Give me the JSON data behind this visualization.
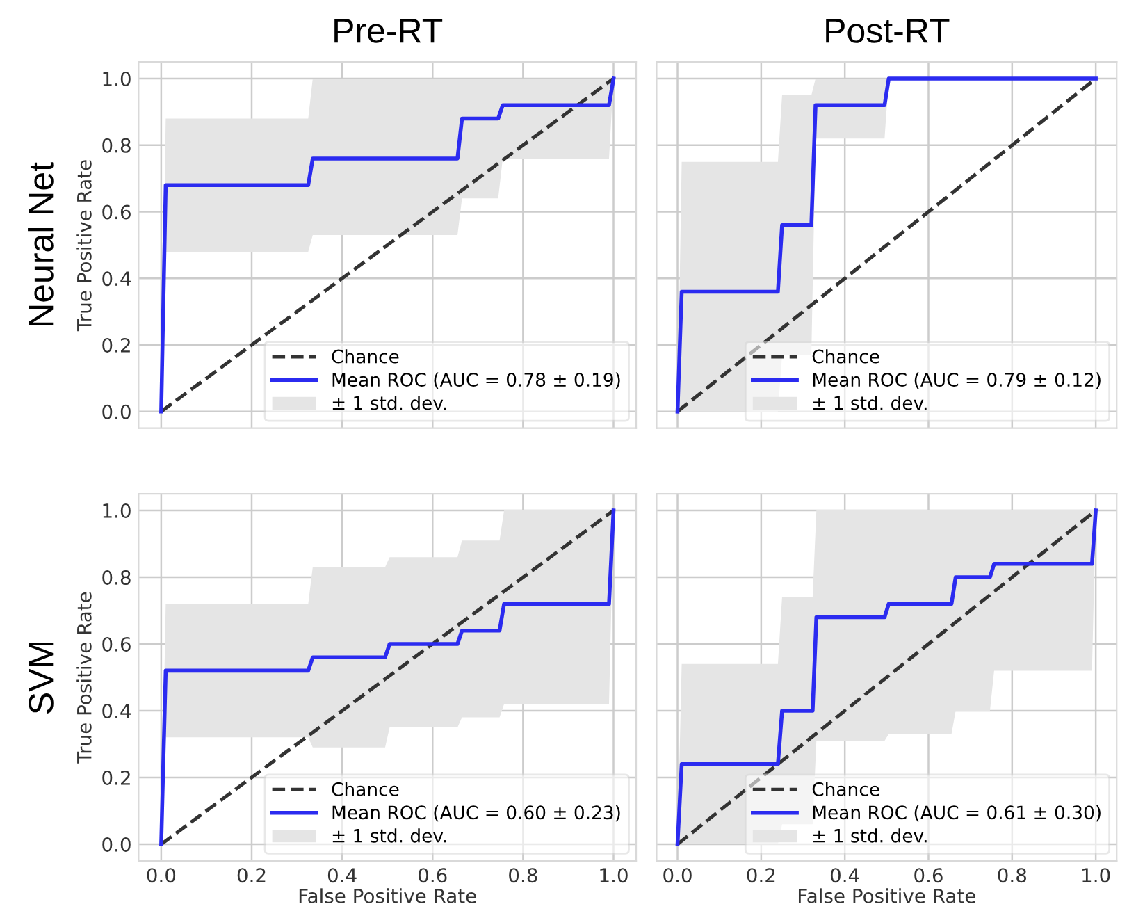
{
  "chart_data": [
    {
      "type": "line",
      "title": "Pre-RT",
      "ylabel": "True Positive Rate",
      "annotations": [
        "Neural Net",
        "± 1 std. dev."
      ],
      "tick_labels": "y",
      "xlim": [
        -0.05,
        1.05
      ],
      "ylim": [
        -0.05,
        1.05
      ],
      "xticks": [
        {
          "value": 0,
          "label": null
        },
        {
          "value": 0.2,
          "label": null
        },
        {
          "value": 0.4,
          "label": null
        },
        {
          "value": 0.6,
          "label": null
        },
        {
          "value": 0.8,
          "label": null
        },
        {
          "value": 1,
          "label": null
        }
      ],
      "yticks": [
        {
          "value": 0,
          "label": "0.0"
        },
        {
          "value": 0.2,
          "label": "0.2"
        },
        {
          "value": 0.4,
          "label": "0.4"
        },
        {
          "value": 0.6,
          "label": "0.6"
        },
        {
          "value": 0.8,
          "label": "0.8"
        },
        {
          "value": 1,
          "label": "1.0"
        }
      ],
      "grid": true,
      "legend": "bottom right",
      "series": [
        {
          "name": "Chance",
          "color": "#333333",
          "line_style": "dashed",
          "x": [
            0,
            1
          ],
          "values": [
            0,
            1
          ]
        },
        {
          "name": "Mean ROC (AUC = 0.78 ± 0.19)",
          "color": "#2b2bf0",
          "line_style": "solid",
          "x": [
            0,
            0.01,
            0.325,
            0.335,
            0.655,
            0.665,
            0.745,
            0.755,
            0.99,
            1.0
          ],
          "values": [
            0,
            0.68,
            0.68,
            0.76,
            0.76,
            0.88,
            0.88,
            0.92,
            0.92,
            1.0
          ],
          "lower": [
            0,
            0.48,
            0.48,
            0.53,
            0.53,
            0.64,
            0.64,
            0.76,
            0.76,
            1.0
          ],
          "upper": [
            0,
            0.88,
            0.88,
            1.0,
            1.0,
            1.0,
            1.0,
            1.0,
            1.0,
            1.0
          ]
        }
      ]
    },
    {
      "type": "line",
      "title": "Post-RT",
      "annotations": [
        "± 1 std. dev."
      ],
      "tick_labels": false,
      "xlim": [
        -0.05,
        1.05
      ],
      "ylim": [
        -0.05,
        1.05
      ],
      "xticks": [
        {
          "value": 0,
          "label": null
        },
        {
          "value": 0.2,
          "label": null
        },
        {
          "value": 0.4,
          "label": null
        },
        {
          "value": 0.6,
          "label": null
        },
        {
          "value": 0.8,
          "label": null
        },
        {
          "value": 1,
          "label": null
        }
      ],
      "yticks": [
        {
          "value": 0,
          "label": null
        },
        {
          "value": 0.2,
          "label": null
        },
        {
          "value": 0.4,
          "label": null
        },
        {
          "value": 0.6,
          "label": null
        },
        {
          "value": 0.8,
          "label": null
        },
        {
          "value": 1,
          "label": null
        }
      ],
      "grid": true,
      "legend": "bottom right",
      "series": [
        {
          "name": "Chance",
          "color": "#333333",
          "line_style": "dashed",
          "x": [
            0,
            1
          ],
          "values": [
            0,
            1
          ]
        },
        {
          "name": "Mean ROC (AUC = 0.79 ± 0.12)",
          "color": "#2b2bf0",
          "line_style": "solid",
          "x": [
            0,
            0.01,
            0.24,
            0.25,
            0.32,
            0.33,
            0.495,
            0.505,
            1.0
          ],
          "values": [
            0,
            0.36,
            0.36,
            0.56,
            0.56,
            0.92,
            0.92,
            1.0,
            1.0
          ],
          "lower": [
            0,
            0,
            0,
            0.17,
            0.17,
            0.82,
            0.82,
            1.0,
            1.0
          ],
          "upper": [
            0,
            0.75,
            0.75,
            0.95,
            0.95,
            1.0,
            1.0,
            1.0,
            1.0
          ]
        }
      ]
    },
    {
      "type": "line",
      "xlabel": "False Positive Rate",
      "ylabel": "True Positive Rate",
      "annotations": [
        "SVM",
        "± 1 std. dev."
      ],
      "xlim": [
        -0.05,
        1.05
      ],
      "ylim": [
        -0.05,
        1.05
      ],
      "xticks": [
        {
          "value": 0,
          "label": "0.0"
        },
        {
          "value": 0.2,
          "label": "0.2"
        },
        {
          "value": 0.4,
          "label": "0.4"
        },
        {
          "value": 0.6,
          "label": "0.6"
        },
        {
          "value": 0.8,
          "label": "0.8"
        },
        {
          "value": 1,
          "label": "1.0"
        }
      ],
      "yticks": [
        {
          "value": 0,
          "label": "0.0"
        },
        {
          "value": 0.2,
          "label": "0.2"
        },
        {
          "value": 0.4,
          "label": "0.4"
        },
        {
          "value": 0.6,
          "label": "0.6"
        },
        {
          "value": 0.8,
          "label": "0.8"
        },
        {
          "value": 1,
          "label": "1.0"
        }
      ],
      "grid": true,
      "legend": "bottom right",
      "series": [
        {
          "name": "Chance",
          "color": "#333333",
          "line_style": "dashed",
          "x": [
            0,
            1
          ],
          "values": [
            0,
            1
          ]
        },
        {
          "name": "Mean ROC (AUC = 0.60 ± 0.23)",
          "color": "#2b2bf0",
          "line_style": "solid",
          "x": [
            0,
            0.01,
            0.325,
            0.335,
            0.495,
            0.505,
            0.655,
            0.665,
            0.748,
            0.758,
            0.99,
            1.0
          ],
          "values": [
            0,
            0.52,
            0.52,
            0.56,
            0.56,
            0.6,
            0.6,
            0.64,
            0.64,
            0.72,
            0.72,
            1.0
          ],
          "lower": [
            0,
            0.32,
            0.32,
            0.29,
            0.29,
            0.35,
            0.35,
            0.38,
            0.38,
            0.42,
            0.42,
            1.0
          ],
          "upper": [
            0,
            0.72,
            0.72,
            0.83,
            0.83,
            0.86,
            0.86,
            0.91,
            0.91,
            1.0,
            1.0,
            1.0
          ]
        }
      ]
    },
    {
      "type": "line",
      "xlabel": "False Positive Rate",
      "annotations": [
        "± 1 std. dev."
      ],
      "tick_labels": "x",
      "xlim": [
        -0.05,
        1.05
      ],
      "ylim": [
        -0.05,
        1.05
      ],
      "xticks": [
        {
          "value": 0,
          "label": "0.0"
        },
        {
          "value": 0.2,
          "label": "0.2"
        },
        {
          "value": 0.4,
          "label": "0.4"
        },
        {
          "value": 0.6,
          "label": "0.6"
        },
        {
          "value": 0.8,
          "label": "0.8"
        },
        {
          "value": 1,
          "label": "1.0"
        }
      ],
      "yticks": [
        {
          "value": 0,
          "label": null
        },
        {
          "value": 0.2,
          "label": null
        },
        {
          "value": 0.4,
          "label": null
        },
        {
          "value": 0.6,
          "label": null
        },
        {
          "value": 0.8,
          "label": null
        },
        {
          "value": 1,
          "label": null
        }
      ],
      "grid": true,
      "legend": "bottom right",
      "series": [
        {
          "name": "Chance",
          "color": "#333333",
          "line_style": "dashed",
          "x": [
            0,
            1
          ],
          "values": [
            0,
            1
          ]
        },
        {
          "name": "Mean ROC (AUC = 0.61 ± 0.30)",
          "color": "#2b2bf0",
          "line_style": "solid",
          "x": [
            0,
            0.01,
            0.24,
            0.25,
            0.323,
            0.332,
            0.495,
            0.505,
            0.655,
            0.665,
            0.747,
            0.757,
            0.991,
            1.0
          ],
          "values": [
            0,
            0.24,
            0.24,
            0.4,
            0.4,
            0.68,
            0.68,
            0.72,
            0.72,
            0.8,
            0.8,
            0.84,
            0.84,
            1.0
          ],
          "lower": [
            0,
            0,
            0,
            0.06,
            0.06,
            0.31,
            0.31,
            0.33,
            0.33,
            0.4,
            0.4,
            0.52,
            0.52,
            1.0
          ],
          "upper": [
            0,
            0.54,
            0.54,
            0.74,
            0.74,
            1,
            1,
            1,
            1,
            1,
            1,
            1,
            1,
            1
          ]
        }
      ]
    }
  ]
}
